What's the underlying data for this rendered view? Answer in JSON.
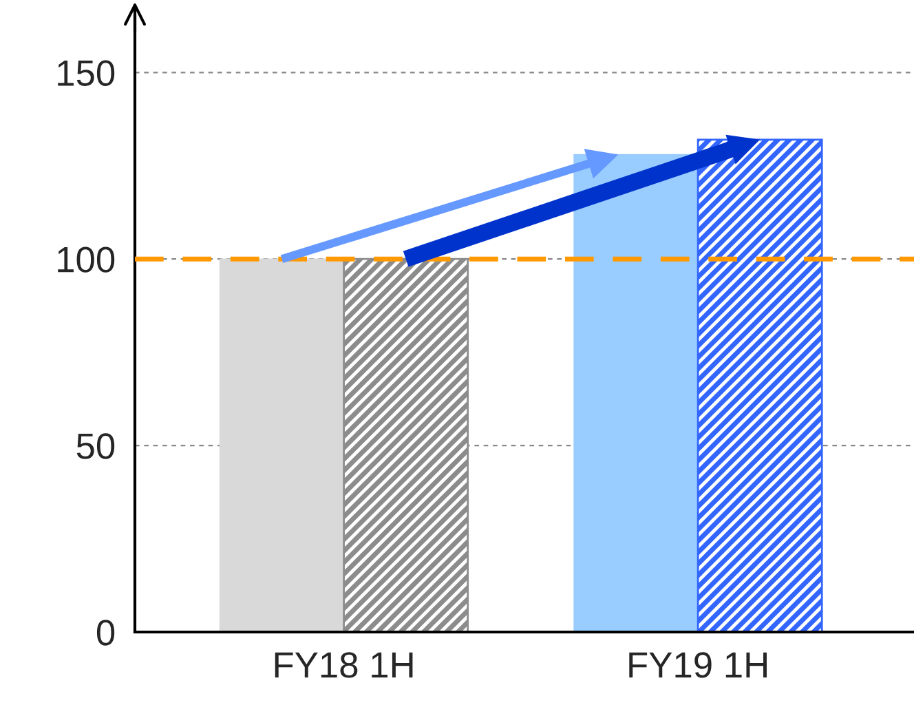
{
  "chart_data": {
    "type": "bar",
    "categories": [
      "FY18 1H",
      "FY19 1H"
    ],
    "series": [
      {
        "colors": [
          "#d9d9d9",
          "#99ccff"
        ],
        "values": [
          100,
          128
        ]
      },
      {
        "colors": [
          "#8c8c8c",
          "#3366ff"
        ],
        "values": [
          100,
          132
        ]
      }
    ],
    "ylim": [
      0,
      165
    ],
    "yticks": [
      0,
      50,
      100,
      150
    ],
    "grid": "y",
    "ref_lines": [
      {
        "axis": "y",
        "value": 100,
        "color": "#ff9900",
        "line_style": "dashed"
      }
    ]
  }
}
